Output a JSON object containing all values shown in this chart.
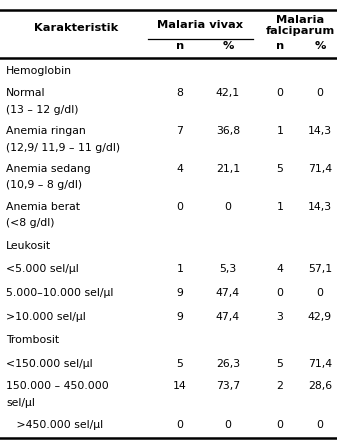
{
  "title_col1": "Karakteristik",
  "header_vivax": "Malaria vivax",
  "header_falciparum_line1": "Malaria",
  "header_falciparum_line2": "falciparum",
  "subheader": [
    "n",
    "%",
    "n",
    "%"
  ],
  "rows": [
    {
      "label": "Hemoglobin",
      "sub": "",
      "vivax_n": "",
      "vivax_pct": "",
      "falc_n": "",
      "falc_pct": ""
    },
    {
      "label": "Normal",
      "sub": "(13 – 12 g/dl)",
      "vivax_n": "8",
      "vivax_pct": "42,1",
      "falc_n": "0",
      "falc_pct": "0"
    },
    {
      "label": "Anemia ringan",
      "sub": "(12,9/ 11,9 – 11 g/dl)",
      "vivax_n": "7",
      "vivax_pct": "36,8",
      "falc_n": "1",
      "falc_pct": "14,3"
    },
    {
      "label": "Anemia sedang",
      "sub": "(10,9 – 8 g/dl)",
      "vivax_n": "4",
      "vivax_pct": "21,1",
      "falc_n": "5",
      "falc_pct": "71,4"
    },
    {
      "label": "Anemia berat",
      "sub": "(<8 g/dl)",
      "vivax_n": "0",
      "vivax_pct": "0",
      "falc_n": "1",
      "falc_pct": "14,3"
    },
    {
      "label": "Leukosit",
      "sub": "",
      "vivax_n": "",
      "vivax_pct": "",
      "falc_n": "",
      "falc_pct": ""
    },
    {
      "label": "<5.000 sel/µl",
      "sub": "",
      "vivax_n": "1",
      "vivax_pct": "5,3",
      "falc_n": "4",
      "falc_pct": "57,1"
    },
    {
      "label": "5.000–10.000 sel/µl",
      "sub": "",
      "vivax_n": "9",
      "vivax_pct": "47,4",
      "falc_n": "0",
      "falc_pct": "0"
    },
    {
      "label": ">10.000 sel/µl",
      "sub": "",
      "vivax_n": "9",
      "vivax_pct": "47,4",
      "falc_n": "3",
      "falc_pct": "42,9"
    },
    {
      "label": "Trombosit",
      "sub": "",
      "vivax_n": "",
      "vivax_pct": "",
      "falc_n": "",
      "falc_pct": ""
    },
    {
      "label": "<150.000 sel/µl",
      "sub": "",
      "vivax_n": "5",
      "vivax_pct": "26,3",
      "falc_n": "5",
      "falc_pct": "71,4"
    },
    {
      "label": "150.000 – 450.000",
      "sub": "sel/µl",
      "vivax_n": "14",
      "vivax_pct": "73,7",
      "falc_n": "2",
      "falc_pct": "28,6"
    },
    {
      "label": "   >450.000 sel/µl",
      "sub": "",
      "vivax_n": "0",
      "vivax_pct": "0",
      "falc_n": "0",
      "falc_pct": "0"
    }
  ],
  "bg_color": "#ffffff",
  "text_color": "#000000",
  "font_size": 7.8,
  "header_font_size": 8.2
}
